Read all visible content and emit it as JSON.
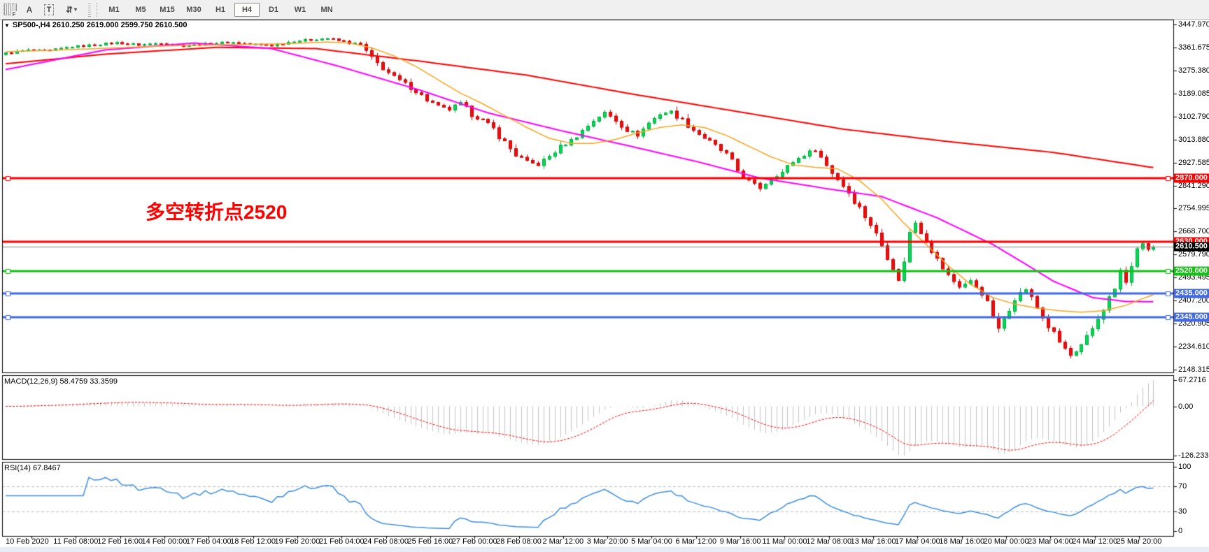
{
  "toolbar": {
    "periods_grid_icon": "F",
    "letter_a_label": "A",
    "text_tool_label": "T",
    "arrows_icon": "⇵",
    "dropdown_caret": "▾",
    "timeframes": [
      {
        "label": "M1",
        "active": false
      },
      {
        "label": "M5",
        "active": false
      },
      {
        "label": "M15",
        "active": false
      },
      {
        "label": "M30",
        "active": false
      },
      {
        "label": "H1",
        "active": false
      },
      {
        "label": "H4",
        "active": true
      },
      {
        "label": "D1",
        "active": false
      },
      {
        "label": "W1",
        "active": false
      },
      {
        "label": "MN",
        "active": false
      }
    ]
  },
  "chart_header": {
    "collapse_triangle": "▼",
    "title": "SP500-,H4  2610.250 2619.000 2599.750 2610.500"
  },
  "annotation": {
    "text": "多空转折点2520",
    "color": "#ff0000"
  },
  "price_axis": {
    "ticks": [
      "3447.970",
      "3361.675",
      "3275.380",
      "3189.085",
      "3102.790",
      "3013.880",
      "2927.585",
      "2841.290",
      "2754.995",
      "2668.700",
      "2579.790",
      "2493.495",
      "2407.200",
      "2320.905",
      "2234.610",
      "2148.315"
    ]
  },
  "price_lines": [
    {
      "value": 2870.0,
      "label": "2870.000",
      "color": "#ff0000",
      "width": 3,
      "handles": true,
      "tag_bg": "#ff0000"
    },
    {
      "value": 2630.0,
      "label": "2630.000",
      "color": "#ff0000",
      "width": 3,
      "handles": false,
      "tag_bg": "#ff0000"
    },
    {
      "value": 2610.5,
      "label": "2610.500",
      "color": "#7f7f7f",
      "width": 1,
      "handles": false,
      "tag_bg": "#000000",
      "current": true
    },
    {
      "value": 2520.0,
      "label": "2520.000",
      "color": "#12c112",
      "width": 3,
      "handles": true,
      "tag_bg": "#12c112"
    },
    {
      "value": 2435.0,
      "label": "2435.000",
      "color": "#4169e1",
      "width": 3,
      "handles": true,
      "tag_bg": "#4169e1"
    },
    {
      "value": 2345.0,
      "label": "2345.000",
      "color": "#4169e1",
      "width": 3,
      "handles": true,
      "tag_bg": "#4169e1"
    }
  ],
  "indicators": {
    "macd": {
      "label": "MACD(12,26,9) 58.4759 33.3599",
      "axis": [
        67.2716,
        0.0,
        -126.233
      ],
      "axis_labels": [
        "67.2716",
        "0.00",
        "-126.233"
      ]
    },
    "rsi": {
      "label": "RSI(14) 67.8467",
      "axis": [
        100,
        70,
        30,
        0
      ],
      "axis_labels": [
        "100",
        "70",
        "30",
        "0"
      ],
      "levels": [
        70,
        30
      ]
    }
  },
  "time_axis": {
    "labels": [
      "10 Feb 2020",
      "11 Feb 08:00",
      "12 Feb 16:00",
      "14 Feb 00:00",
      "17 Feb 04:00",
      "18 Feb 12:00",
      "19 Feb 20:00",
      "21 Feb 04:00",
      "24 Feb 08:00",
      "25 Feb 16:00",
      "27 Feb 00:00",
      "28 Feb 08:00",
      "2 Mar 12:00",
      "3 Mar 20:00",
      "5 Mar 04:00",
      "6 Mar 12:00",
      "9 Mar 16:00",
      "11 Mar 00:00",
      "12 Mar 08:00",
      "13 Mar 16:00",
      "17 Mar 04:00",
      "18 Mar 16:00",
      "20 Mar 00:00",
      "23 Mar 04:00",
      "24 Mar 12:00",
      "25 Mar 20:00"
    ]
  },
  "chart_data": {
    "type": "candlestick",
    "symbol": "SP500-",
    "timeframe": "H4",
    "current_bar": {
      "open": 2610.25,
      "high": 2619.0,
      "low": 2599.75,
      "close": 2610.5
    },
    "y_axis_range": [
      2148.315,
      3447.97
    ],
    "bars_total": 208,
    "close_waypoints": [
      [
        0,
        3340
      ],
      [
        4,
        3352
      ],
      [
        8,
        3350
      ],
      [
        12,
        3365
      ],
      [
        16,
        3372
      ],
      [
        20,
        3380
      ],
      [
        24,
        3372
      ],
      [
        28,
        3378
      ],
      [
        32,
        3368
      ],
      [
        36,
        3375
      ],
      [
        40,
        3382
      ],
      [
        44,
        3375
      ],
      [
        48,
        3370
      ],
      [
        52,
        3386
      ],
      [
        56,
        3393
      ],
      [
        58,
        3396
      ],
      [
        60,
        3388
      ],
      [
        62,
        3380
      ],
      [
        64,
        3372
      ],
      [
        66,
        3320
      ],
      [
        68,
        3285
      ],
      [
        70,
        3250
      ],
      [
        72,
        3225
      ],
      [
        74,
        3198
      ],
      [
        76,
        3165
      ],
      [
        78,
        3140
      ],
      [
        80,
        3128
      ],
      [
        82,
        3152
      ],
      [
        84,
        3110
      ],
      [
        86,
        3088
      ],
      [
        88,
        3056
      ],
      [
        90,
        3005
      ],
      [
        92,
        2958
      ],
      [
        94,
        2932
      ],
      [
        96,
        2920
      ],
      [
        98,
        2952
      ],
      [
        100,
        2988
      ],
      [
        102,
        3012
      ],
      [
        104,
        3048
      ],
      [
        106,
        3088
      ],
      [
        108,
        3118
      ],
      [
        110,
        3088
      ],
      [
        112,
        3052
      ],
      [
        114,
        3032
      ],
      [
        116,
        3078
      ],
      [
        118,
        3112
      ],
      [
        120,
        3120
      ],
      [
        122,
        3088
      ],
      [
        124,
        3052
      ],
      [
        126,
        3022
      ],
      [
        128,
        2992
      ],
      [
        130,
        2958
      ],
      [
        132,
        2898
      ],
      [
        134,
        2858
      ],
      [
        136,
        2832
      ],
      [
        138,
        2872
      ],
      [
        140,
        2892
      ],
      [
        142,
        2932
      ],
      [
        144,
        2958
      ],
      [
        146,
        2978
      ],
      [
        148,
        2918
      ],
      [
        150,
        2868
      ],
      [
        152,
        2818
      ],
      [
        154,
        2758
      ],
      [
        156,
        2698
      ],
      [
        158,
        2618
      ],
      [
        160,
        2538
      ],
      [
        161,
        2482
      ],
      [
        162,
        2562
      ],
      [
        163,
        2662
      ],
      [
        164,
        2702
      ],
      [
        166,
        2642
      ],
      [
        168,
        2562
      ],
      [
        170,
        2502
      ],
      [
        172,
        2462
      ],
      [
        174,
        2482
      ],
      [
        176,
        2442
      ],
      [
        178,
        2352
      ],
      [
        179,
        2302
      ],
      [
        180,
        2342
      ],
      [
        182,
        2422
      ],
      [
        184,
        2452
      ],
      [
        186,
        2382
      ],
      [
        188,
        2312
      ],
      [
        190,
        2252
      ],
      [
        192,
        2202
      ],
      [
        193,
        2212
      ],
      [
        194,
        2232
      ],
      [
        196,
        2302
      ],
      [
        198,
        2382
      ],
      [
        200,
        2452
      ],
      [
        201,
        2522
      ],
      [
        202,
        2475
      ],
      [
        203,
        2545
      ],
      [
        204,
        2592
      ],
      [
        205,
        2625
      ],
      [
        206,
        2602
      ],
      [
        207,
        2610.5
      ]
    ],
    "ma_red_waypoints": [
      [
        0,
        3300
      ],
      [
        18,
        3336
      ],
      [
        38,
        3362
      ],
      [
        56,
        3357
      ],
      [
        75,
        3309
      ],
      [
        94,
        3257
      ],
      [
        113,
        3186
      ],
      [
        132,
        3120
      ],
      [
        151,
        3054
      ],
      [
        170,
        3007
      ],
      [
        189,
        2966
      ],
      [
        207,
        2909
      ]
    ],
    "ma_magenta_waypoints": [
      [
        0,
        3278
      ],
      [
        18,
        3352
      ],
      [
        34,
        3378
      ],
      [
        48,
        3357
      ],
      [
        60,
        3291
      ],
      [
        75,
        3199
      ],
      [
        87,
        3115
      ],
      [
        100,
        3049
      ],
      [
        113,
        2988
      ],
      [
        125,
        2930
      ],
      [
        136,
        2870
      ],
      [
        148,
        2830
      ],
      [
        158,
        2800
      ],
      [
        168,
        2720
      ],
      [
        178,
        2620
      ],
      [
        184,
        2545
      ],
      [
        189,
        2481
      ],
      [
        196,
        2420
      ],
      [
        202,
        2405
      ],
      [
        207,
        2404
      ]
    ],
    "ma_orange_waypoints": [
      [
        0,
        3345
      ],
      [
        10,
        3352
      ],
      [
        20,
        3360
      ],
      [
        30,
        3368
      ],
      [
        40,
        3372
      ],
      [
        50,
        3375
      ],
      [
        58,
        3382
      ],
      [
        62,
        3378
      ],
      [
        66,
        3360
      ],
      [
        70,
        3330
      ],
      [
        74,
        3290
      ],
      [
        78,
        3240
      ],
      [
        82,
        3190
      ],
      [
        86,
        3150
      ],
      [
        90,
        3105
      ],
      [
        94,
        3060
      ],
      [
        98,
        3020
      ],
      [
        102,
        3000
      ],
      [
        106,
        3000
      ],
      [
        110,
        3015
      ],
      [
        114,
        3040
      ],
      [
        118,
        3060
      ],
      [
        122,
        3070
      ],
      [
        126,
        3060
      ],
      [
        130,
        3030
      ],
      [
        134,
        2990
      ],
      [
        138,
        2950
      ],
      [
        142,
        2920
      ],
      [
        146,
        2910
      ],
      [
        150,
        2905
      ],
      [
        154,
        2860
      ],
      [
        158,
        2790
      ],
      [
        162,
        2700
      ],
      [
        166,
        2620
      ],
      [
        170,
        2540
      ],
      [
        174,
        2470
      ],
      [
        178,
        2420
      ],
      [
        182,
        2395
      ],
      [
        186,
        2380
      ],
      [
        190,
        2370
      ],
      [
        194,
        2365
      ],
      [
        198,
        2370
      ],
      [
        202,
        2390
      ],
      [
        205,
        2415
      ],
      [
        207,
        2430
      ]
    ],
    "macd_range": [
      -126.233,
      67.2716
    ],
    "rsi_range": [
      0,
      100
    ]
  },
  "colors": {
    "bull_body": "#00dc55",
    "bull_edge": "#00a83c",
    "bear_body": "#f20c0c",
    "bear_edge": "#c80000",
    "ma_red": "#ff0000",
    "ma_magenta": "#ff00ff",
    "ma_orange": "#f5a623",
    "macd_hist": "#c4c4c4",
    "macd_signal": "#ff0000",
    "rsi_line": "#3e8ede",
    "rsi_level": "#bdbdbd",
    "panel_border": "#000000",
    "toolbar_bg": "#f0f0f0"
  }
}
